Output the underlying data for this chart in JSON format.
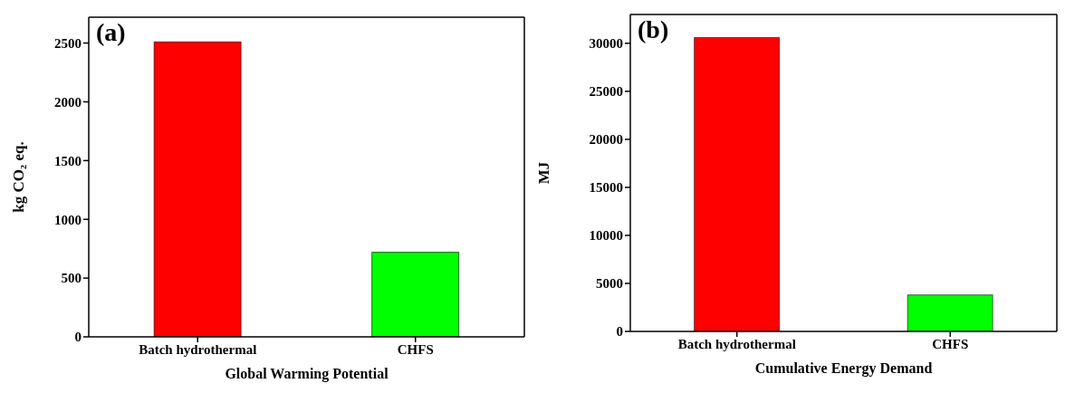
{
  "chart_data": [
    {
      "type": "bar",
      "annotations": [
        "(a)"
      ],
      "xlabel": "Global Warming Potential",
      "ylabel": "kg CO₂ eq.",
      "categories": [
        "Batch hydrothermal",
        "CHFS"
      ],
      "values": [
        2510,
        720
      ],
      "colors": [
        "#ff0000",
        "#00ff00"
      ],
      "ylim": [
        0,
        2720
      ],
      "yticks": [
        0,
        500,
        1000,
        1500,
        2000,
        2500
      ],
      "grid": false,
      "legend": false
    },
    {
      "type": "bar",
      "annotations": [
        "(b)"
      ],
      "xlabel": "Cumulative Energy Demand",
      "ylabel": "MJ",
      "categories": [
        "Batch hydrothermal",
        "CHFS"
      ],
      "values": [
        30600,
        3800
      ],
      "colors": [
        "#ff0000",
        "#00ff00"
      ],
      "ylim": [
        0,
        33000
      ],
      "yticks": [
        0,
        5000,
        10000,
        15000,
        20000,
        25000,
        30000
      ],
      "grid": false,
      "legend": false
    }
  ]
}
